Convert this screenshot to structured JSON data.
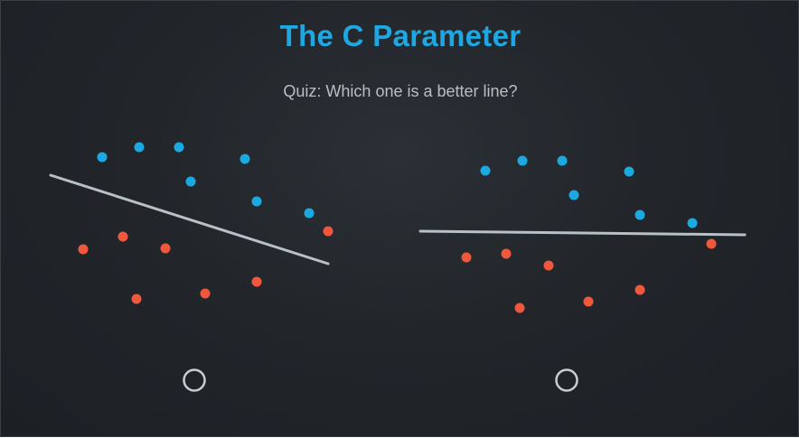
{
  "title": "The C Parameter",
  "question": "Quiz: Which one is a better line?",
  "colors": {
    "blue_points": "#1ca9e2",
    "red_points": "#f0583d",
    "separator_line": "#b8c0c8",
    "radio_outline": "#c9cdd2",
    "title": "#1fa7e1"
  },
  "options": [
    {
      "blue_count": 8,
      "red_count": 7,
      "separator": "sloped line",
      "selected": false
    },
    {
      "blue_count": 8,
      "red_count": 7,
      "separator": "horizontal line",
      "selected": false
    }
  ]
}
